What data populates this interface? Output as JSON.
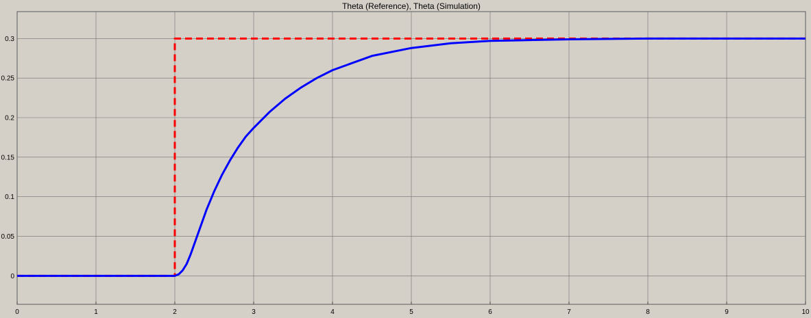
{
  "chart_data": {
    "type": "line",
    "title": "Theta (Reference), Theta (Simulation)",
    "xlabel": "",
    "ylabel": "",
    "xlim": [
      0,
      10
    ],
    "ylim": [
      -0.036,
      0.334
    ],
    "grid": true,
    "xticks": [
      "0",
      "1",
      "2",
      "3",
      "4",
      "5",
      "6",
      "7",
      "8",
      "9",
      "10"
    ],
    "yticks": [
      "0",
      "0.05",
      "0.1",
      "0.15",
      "0.2",
      "0.25",
      "0.3"
    ],
    "series": [
      {
        "color": "#ff0000",
        "dash": "dashed",
        "x": [
          0,
          2,
          2,
          10
        ],
        "y": [
          0,
          0,
          0.3,
          0.3
        ]
      },
      {
        "color": "#0000ff",
        "dash": "solid",
        "x": [
          0,
          2,
          2.05,
          2.1,
          2.15,
          2.2,
          2.3,
          2.4,
          2.5,
          2.6,
          2.7,
          2.8,
          2.9,
          3,
          3.2,
          3.4,
          3.6,
          3.8,
          4,
          4.5,
          5,
          5.5,
          6,
          6.5,
          7,
          8,
          9,
          10
        ],
        "y": [
          0,
          0,
          0.002,
          0.007,
          0.015,
          0.027,
          0.055,
          0.083,
          0.107,
          0.128,
          0.146,
          0.162,
          0.176,
          0.187,
          0.207,
          0.224,
          0.238,
          0.25,
          0.26,
          0.278,
          0.288,
          0.294,
          0.297,
          0.298,
          0.299,
          0.3,
          0.3,
          0.3
        ]
      }
    ],
    "colors": {
      "background": "#d4d0c8",
      "frame": "#9c9a98",
      "grid": "#6f6f6f",
      "text": "#000000"
    }
  }
}
